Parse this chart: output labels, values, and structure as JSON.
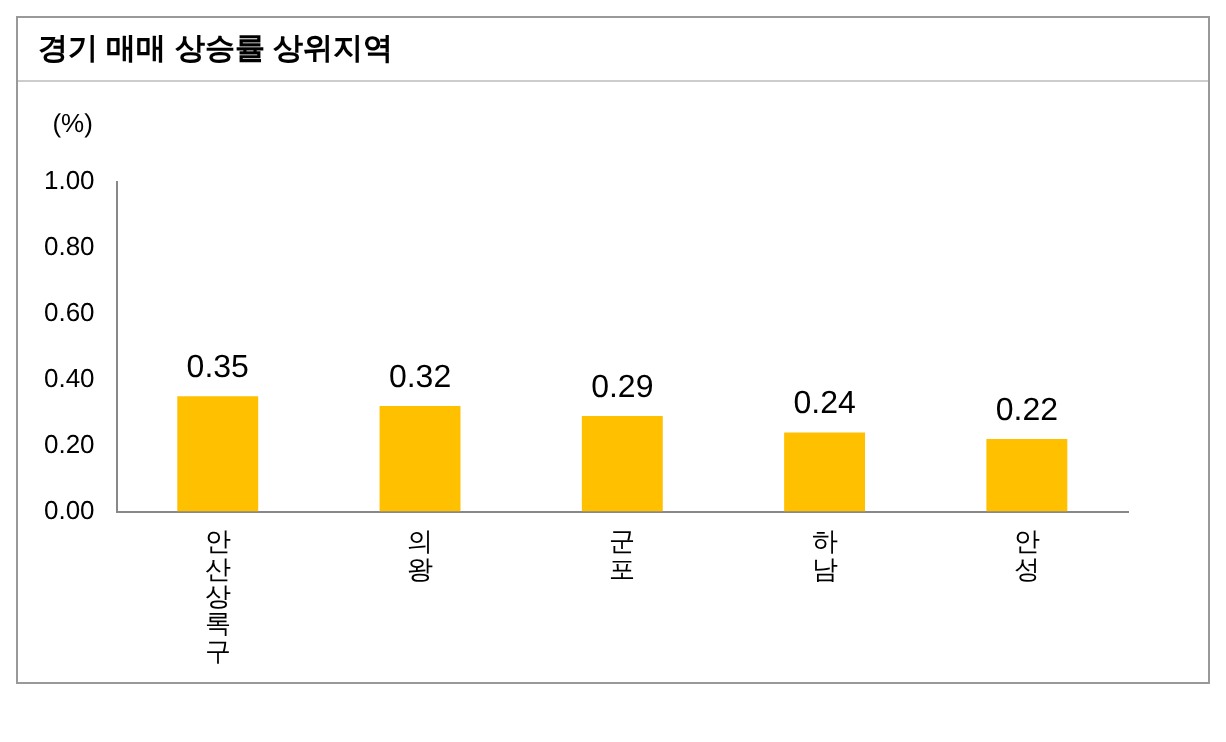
{
  "chart_data": {
    "type": "bar",
    "title": "경기 매매 상승률 상위지역",
    "ylabel": "(%)",
    "categories": [
      "안산상록구",
      "의왕",
      "군포",
      "하남",
      "안성"
    ],
    "values": [
      0.35,
      0.32,
      0.29,
      0.24,
      0.22
    ],
    "color": "#ffc000",
    "ylim": [
      0,
      1
    ],
    "yticks": [
      {
        "value": 0,
        "label": "0.00"
      },
      {
        "value": 0.2,
        "label": "0.20"
      },
      {
        "value": 0.4,
        "label": "0.40"
      },
      {
        "value": 0.6,
        "label": "0.60"
      },
      {
        "value": 0.8,
        "label": "0.80"
      },
      {
        "value": 1,
        "label": "1.00"
      }
    ],
    "data_labels": true,
    "grid": false,
    "legend": false
  }
}
